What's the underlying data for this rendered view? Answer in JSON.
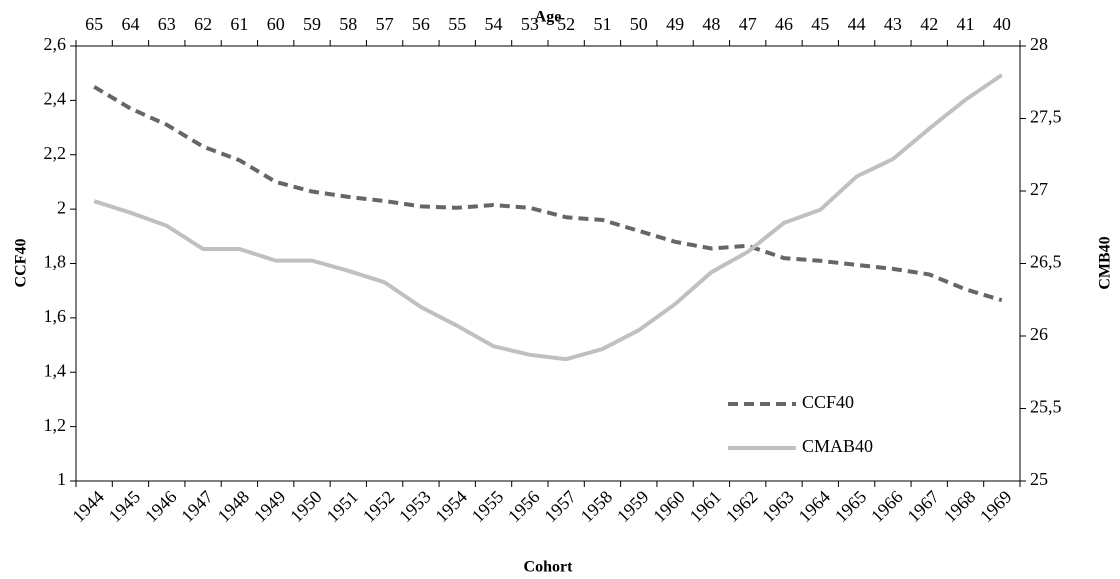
{
  "chart_data": {
    "type": "line",
    "xlabel": "Cohort",
    "x2label": "Age",
    "ylabel": "CCF40",
    "y2label": "CMB40",
    "categories": [
      "1944",
      "1945",
      "1946",
      "1947",
      "1948",
      "1949",
      "1950",
      "1951",
      "1952",
      "1953",
      "1954",
      "1955",
      "1956",
      "1957",
      "1958",
      "1959",
      "1960",
      "1961",
      "1962",
      "1963",
      "1964",
      "1965",
      "1966",
      "1967",
      "1968",
      "1969"
    ],
    "x2categories": [
      "65",
      "64",
      "63",
      "62",
      "61",
      "60",
      "59",
      "58",
      "57",
      "56",
      "55",
      "54",
      "53",
      "52",
      "51",
      "50",
      "49",
      "48",
      "47",
      "46",
      "45",
      "44",
      "43",
      "42",
      "41",
      "40"
    ],
    "series": [
      {
        "name": "CCF40",
        "color": "#666666",
        "dash": "dashed",
        "axis": "y",
        "values": [
          2.45,
          2.37,
          2.31,
          2.23,
          2.18,
          2.1,
          2.065,
          2.045,
          2.03,
          2.01,
          2.005,
          2.015,
          2.005,
          1.97,
          1.96,
          1.92,
          1.88,
          1.855,
          1.865,
          1.82,
          1.81,
          1.795,
          1.78,
          1.76,
          1.705,
          1.665
        ]
      },
      {
        "name": "CMAB40",
        "color": "#c0c0c0",
        "dash": "solid",
        "axis": "y2",
        "values": [
          26.93,
          26.85,
          26.76,
          26.6,
          26.6,
          26.52,
          26.52,
          26.45,
          26.37,
          26.2,
          26.07,
          25.93,
          25.87,
          25.84,
          25.91,
          26.04,
          26.22,
          26.44,
          26.58,
          26.78,
          26.87,
          27.1,
          27.22,
          27.43,
          27.63,
          27.8
        ]
      }
    ],
    "ylim": [
      1,
      2.6
    ],
    "yticks": [
      1,
      {
        "value": 1.2,
        "label": "1,2"
      },
      {
        "value": 1.4,
        "label": "1,4"
      },
      {
        "value": 1.6,
        "label": "1,6"
      },
      {
        "value": 1.8,
        "label": "1,8"
      },
      2,
      {
        "value": 2.2,
        "label": "2,2"
      },
      {
        "value": 2.4,
        "label": "2,4"
      },
      {
        "value": 2.6,
        "label": "2,6"
      }
    ],
    "y2lim": [
      25,
      28
    ],
    "y2ticks": [
      25,
      {
        "value": 25.5,
        "label": "25,5"
      },
      26,
      {
        "value": 26.5,
        "label": "26,5"
      },
      27,
      {
        "value": 27.5,
        "label": "27,5"
      },
      28
    ],
    "legend": "lower-right",
    "grid": false
  }
}
